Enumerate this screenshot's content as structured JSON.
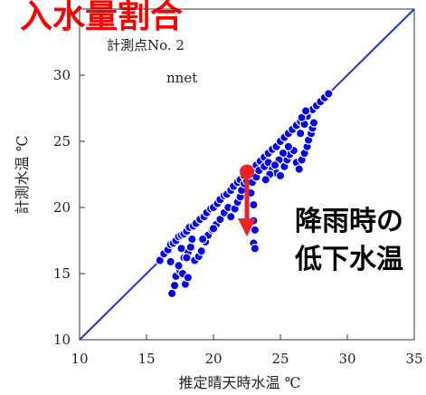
{
  "chart_data": {
    "type": "scatter",
    "heading": "入水量割合",
    "inset_labels": [
      "計測点No. 2",
      "nnet"
    ],
    "xlabel": "推定晴天時水温 ℃",
    "ylabel": "計測水温 ℃",
    "xlim": [
      10,
      35
    ],
    "ylim": [
      10,
      35
    ],
    "xticks": [
      10,
      15,
      20,
      25,
      30,
      35
    ],
    "yticks": [
      10,
      15,
      20,
      25,
      30
    ],
    "grid": false,
    "reference_line": {
      "name": "1:1",
      "from": [
        10,
        10
      ],
      "to": [
        35,
        35
      ]
    },
    "colors": {
      "points": "#0000ee",
      "line": "#2233cc",
      "arrow": "#ee2222",
      "heading": "#ff0000"
    },
    "series": [
      {
        "values": [
          [
            16.0,
            16.0
          ],
          [
            16.3,
            16.5
          ],
          [
            16.6,
            16.8
          ],
          [
            16.8,
            17.2
          ],
          [
            17.0,
            17.3
          ],
          [
            17.2,
            17.5
          ],
          [
            17.4,
            17.8
          ],
          [
            17.6,
            17.9
          ],
          [
            17.8,
            18.0
          ],
          [
            18.0,
            18.2
          ],
          [
            18.2,
            18.5
          ],
          [
            18.5,
            18.6
          ],
          [
            18.7,
            18.8
          ],
          [
            19.0,
            19.1
          ],
          [
            19.3,
            19.3
          ],
          [
            19.5,
            19.6
          ],
          [
            19.8,
            19.9
          ],
          [
            20.0,
            20.0
          ],
          [
            20.3,
            20.3
          ],
          [
            20.5,
            20.6
          ],
          [
            20.8,
            20.9
          ],
          [
            21.0,
            21.0
          ],
          [
            21.3,
            21.3
          ],
          [
            21.5,
            21.6
          ],
          [
            21.8,
            21.9
          ],
          [
            22.0,
            22.1
          ],
          [
            22.3,
            22.4
          ],
          [
            22.6,
            22.6
          ],
          [
            22.9,
            22.9
          ],
          [
            23.2,
            23.2
          ],
          [
            23.5,
            23.5
          ],
          [
            23.8,
            23.8
          ],
          [
            24.1,
            24.1
          ],
          [
            24.4,
            24.4
          ],
          [
            24.7,
            24.6
          ],
          [
            25.0,
            25.0
          ],
          [
            25.3,
            25.3
          ],
          [
            25.6,
            25.6
          ],
          [
            25.9,
            25.9
          ],
          [
            26.2,
            26.2
          ],
          [
            26.5,
            26.5
          ],
          [
            26.8,
            26.8
          ],
          [
            27.1,
            27.1
          ],
          [
            27.4,
            27.4
          ],
          [
            27.7,
            27.7
          ],
          [
            28.0,
            28.0
          ],
          [
            28.3,
            28.3
          ],
          [
            28.6,
            28.6
          ],
          [
            16.9,
            13.5
          ],
          [
            17.1,
            14.1
          ],
          [
            17.2,
            14.8
          ],
          [
            17.5,
            15.2
          ],
          [
            17.7,
            15.0
          ],
          [
            17.9,
            14.2
          ],
          [
            18.1,
            14.7
          ],
          [
            17.4,
            15.6
          ],
          [
            17.8,
            16.2
          ],
          [
            18.1,
            16.6
          ],
          [
            18.3,
            17.0
          ],
          [
            18.6,
            16.0
          ],
          [
            18.9,
            16.3
          ],
          [
            19.1,
            16.7
          ],
          [
            19.4,
            17.4
          ],
          [
            19.6,
            17.9
          ],
          [
            19.9,
            18.3
          ],
          [
            20.2,
            18.7
          ],
          [
            20.5,
            19.1
          ],
          [
            20.8,
            19.6
          ],
          [
            21.1,
            20.0
          ],
          [
            21.3,
            19.3
          ],
          [
            21.6,
            19.9
          ],
          [
            21.8,
            20.4
          ],
          [
            22.0,
            20.8
          ],
          [
            22.1,
            21.3
          ],
          [
            22.3,
            21.8
          ],
          [
            22.5,
            22.0
          ],
          [
            22.8,
            21.1
          ],
          [
            23.0,
            20.2
          ],
          [
            23.0,
            19.0
          ],
          [
            23.1,
            18.3
          ],
          [
            23.0,
            17.3
          ],
          [
            23.1,
            16.9
          ],
          [
            22.9,
            21.9
          ],
          [
            23.2,
            22.3
          ],
          [
            23.4,
            22.8
          ],
          [
            23.8,
            23.1
          ],
          [
            24.1,
            23.4
          ],
          [
            24.4,
            22.9
          ],
          [
            24.7,
            22.6
          ],
          [
            25.0,
            22.4
          ],
          [
            25.3,
            23.1
          ],
          [
            25.5,
            23.6
          ],
          [
            25.7,
            24.0
          ],
          [
            26.0,
            24.3
          ],
          [
            26.2,
            23.4
          ],
          [
            26.4,
            22.9
          ],
          [
            26.6,
            23.6
          ],
          [
            26.8,
            24.1
          ],
          [
            27.0,
            24.6
          ],
          [
            27.1,
            25.1
          ],
          [
            27.3,
            25.6
          ],
          [
            27.4,
            26.0
          ],
          [
            27.5,
            26.4
          ],
          [
            26.5,
            25.6
          ],
          [
            26.8,
            26.3
          ],
          [
            27.0,
            26.9
          ],
          [
            26.6,
            26.8
          ],
          [
            26.9,
            27.3
          ],
          [
            25.6,
            24.6
          ],
          [
            25.2,
            24.1
          ],
          [
            24.9,
            23.6
          ],
          [
            24.6,
            23.2
          ],
          [
            24.2,
            22.5
          ],
          [
            23.9,
            22.1
          ],
          [
            20.0,
            18.4
          ],
          [
            19.2,
            17.6
          ],
          [
            18.4,
            17.6
          ],
          [
            18.0,
            16.2
          ],
          [
            17.6,
            16.9
          ],
          [
            16.8,
            15.9
          ]
        ]
      }
    ],
    "annotation_arrow": {
      "from": [
        22.5,
        22.7
      ],
      "to": [
        22.5,
        17.8
      ]
    },
    "annotation_text": [
      "降雨時の",
      "低下水温"
    ]
  }
}
